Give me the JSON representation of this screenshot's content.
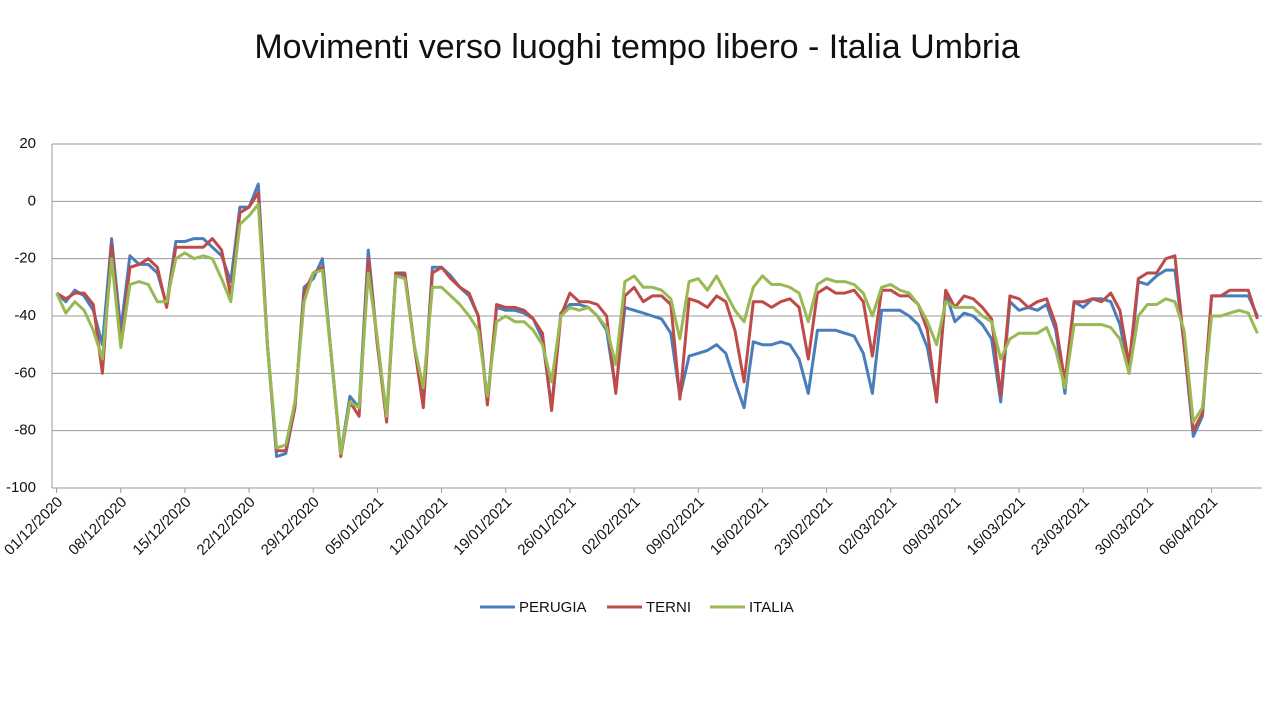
{
  "chart_data": {
    "type": "line",
    "title": "Movimenti verso luoghi tempo libero - Italia Umbria",
    "categories": [
      "01/12/2020",
      null,
      null,
      null,
      null,
      null,
      null,
      "08/12/2020",
      null,
      null,
      null,
      null,
      null,
      null,
      "15/12/2020",
      null,
      null,
      null,
      null,
      null,
      null,
      "22/12/2020",
      null,
      null,
      null,
      null,
      null,
      null,
      "29/12/2020",
      null,
      null,
      null,
      null,
      null,
      null,
      "05/01/2021",
      null,
      null,
      null,
      null,
      null,
      null,
      "12/01/2021",
      null,
      null,
      null,
      null,
      null,
      null,
      "19/01/2021",
      null,
      null,
      null,
      null,
      null,
      null,
      "26/01/2021",
      null,
      null,
      null,
      null,
      null,
      null,
      "02/02/2021",
      null,
      null,
      null,
      null,
      null,
      null,
      "09/02/2021",
      null,
      null,
      null,
      null,
      null,
      null,
      "16/02/2021",
      null,
      null,
      null,
      null,
      null,
      null,
      "23/02/2021",
      null,
      null,
      null,
      null,
      null,
      null,
      "02/03/2021",
      null,
      null,
      null,
      null,
      null,
      null,
      "09/03/2021",
      null,
      null,
      null,
      null,
      null,
      null,
      "16/03/2021",
      null,
      null,
      null,
      null,
      null,
      null,
      "23/03/2021",
      null,
      null,
      null,
      null,
      null,
      null,
      "30/03/2021",
      null,
      null,
      null,
      null,
      null,
      null,
      "06/04/2021",
      null,
      null,
      null,
      null,
      null
    ],
    "series": [
      {
        "name": "PERUGIA",
        "color": "#4a7ebb",
        "values": [
          -32,
          -35,
          -31,
          -33,
          -38,
          -50,
          -13,
          -45,
          -19,
          -22,
          -22,
          -25,
          -36,
          -14,
          -14,
          -13,
          -13,
          -16,
          -19,
          -28,
          -2,
          -2,
          6,
          -50,
          -89,
          -88,
          -72,
          -30,
          -27,
          -20,
          -55,
          -88,
          -68,
          -72,
          -17,
          -50,
          -75,
          -25,
          -26,
          -50,
          -70,
          -23,
          -23,
          -26,
          -30,
          -33,
          -40,
          -70,
          -37,
          -38,
          -38,
          -39,
          -41,
          -48,
          -72,
          -39,
          -36,
          -36,
          -37,
          -40,
          -45,
          -66,
          -37,
          -38,
          -39,
          -40,
          -41,
          -46,
          -68,
          -54,
          -53,
          -52,
          -50,
          -53,
          -63,
          -72,
          -49,
          -50,
          -50,
          -49,
          -50,
          -55,
          -67,
          -45,
          -45,
          -45,
          -46,
          -47,
          -53,
          -67,
          -38,
          -38,
          -38,
          -40,
          -43,
          -51,
          -69,
          -32,
          -42,
          -39,
          -40,
          -43,
          -48,
          -70,
          -35,
          -38,
          -37,
          -38,
          -36,
          -45,
          -67,
          -35,
          -37,
          -34,
          -34,
          -35,
          -43,
          -60,
          -28,
          -29,
          -26,
          -24,
          -24,
          -50,
          -82,
          -75,
          -33,
          -33,
          -33,
          -33,
          -33,
          -40
        ]
      },
      {
        "name": "TERNI",
        "color": "#be4b48",
        "values": [
          -32,
          -34,
          -32,
          -32,
          -36,
          -60,
          -15,
          -50,
          -23,
          -22,
          -20,
          -23,
          -37,
          -16,
          -16,
          -16,
          -16,
          -13,
          -17,
          -33,
          -4,
          -2,
          3,
          -50,
          -87,
          -87,
          -72,
          -32,
          -25,
          -23,
          -55,
          -89,
          -70,
          -75,
          -20,
          -50,
          -77,
          -25,
          -25,
          -50,
          -72,
          -25,
          -23,
          -27,
          -30,
          -32,
          -40,
          -71,
          -36,
          -37,
          -37,
          -38,
          -41,
          -46,
          -73,
          -40,
          -32,
          -35,
          -35,
          -36,
          -40,
          -67,
          -33,
          -30,
          -35,
          -33,
          -33,
          -36,
          -69,
          -34,
          -35,
          -37,
          -33,
          -35,
          -45,
          -63,
          -35,
          -35,
          -37,
          -35,
          -34,
          -37,
          -55,
          -32,
          -30,
          -32,
          -32,
          -31,
          -35,
          -54,
          -31,
          -31,
          -33,
          -33,
          -36,
          -45,
          -70,
          -31,
          -37,
          -33,
          -34,
          -37,
          -41,
          -68,
          -33,
          -34,
          -37,
          -35,
          -34,
          -43,
          -63,
          -35,
          -35,
          -34,
          -35,
          -32,
          -38,
          -57,
          -27,
          -25,
          -25,
          -20,
          -19,
          -50,
          -80,
          -74,
          -33,
          -33,
          -31,
          -31,
          -31,
          -41
        ]
      },
      {
        "name": "ITALIA",
        "color": "#98b954",
        "values": [
          -32,
          -39,
          -35,
          -38,
          -45,
          -55,
          -20,
          -51,
          -29,
          -28,
          -29,
          -35,
          -35,
          -20,
          -18,
          -20,
          -19,
          -20,
          -27,
          -35,
          -8,
          -5,
          -1,
          -50,
          -86,
          -85,
          -70,
          -35,
          -25,
          -24,
          -55,
          -88,
          -70,
          -72,
          -25,
          -48,
          -75,
          -26,
          -27,
          -50,
          -65,
          -30,
          -30,
          -33,
          -36,
          -40,
          -45,
          -68,
          -42,
          -40,
          -42,
          -42,
          -45,
          -50,
          -63,
          -40,
          -37,
          -38,
          -37,
          -40,
          -44,
          -57,
          -28,
          -26,
          -30,
          -30,
          -31,
          -34,
          -48,
          -28,
          -27,
          -31,
          -26,
          -32,
          -38,
          -42,
          -30,
          -26,
          -29,
          -29,
          -30,
          -32,
          -42,
          -29,
          -27,
          -28,
          -28,
          -29,
          -32,
          -40,
          -30,
          -29,
          -31,
          -32,
          -36,
          -42,
          -50,
          -35,
          -37,
          -37,
          -37,
          -40,
          -42,
          -55,
          -48,
          -46,
          -46,
          -46,
          -44,
          -52,
          -65,
          -43,
          -43,
          -43,
          -43,
          -44,
          -48,
          -60,
          -40,
          -36,
          -36,
          -34,
          -35,
          -45,
          -77,
          -72,
          -40,
          -40,
          -39,
          -38,
          -39,
          -46
        ]
      }
    ],
    "ylim": [
      -100,
      20
    ],
    "yticks": [
      -100,
      -80,
      -60,
      -40,
      -20,
      0,
      20
    ],
    "grid": true,
    "legend": "bottom"
  }
}
